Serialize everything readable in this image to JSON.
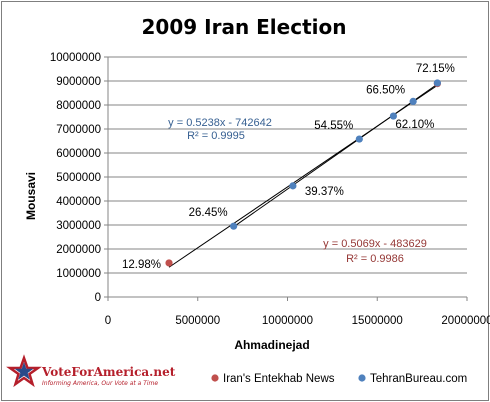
{
  "chart_data": {
    "type": "scatter",
    "title": "2009 Iran Election",
    "xlabel": "Ahmadinejad",
    "ylabel": "Mousavi",
    "xlim": [
      0,
      20000000
    ],
    "ylim": [
      0,
      10000000
    ],
    "xticks": [
      "0",
      "5000000",
      "10000000",
      "15000000",
      "20000000"
    ],
    "yticks": [
      "0",
      "1000000",
      "2000000",
      "3000000",
      "4000000",
      "5000000",
      "6000000",
      "7000000",
      "8000000",
      "9000000",
      "10000000"
    ],
    "grid": "horizontal",
    "series": [
      {
        "name": "Iran's Entekhab News",
        "color": "#c0504d",
        "trendline": {
          "label": "y = 0.5069x - 483629",
          "r2": "R² = 0.9986",
          "slope": 0.5069,
          "intercept": -483629,
          "color": "#953735"
        },
        "points": [
          {
            "x": 3400000,
            "y": 1420000,
            "label": "12.98%"
          },
          {
            "x": 18350000,
            "y": 8890000,
            "label": ""
          }
        ]
      },
      {
        "name": "TehranBureau.com",
        "color": "#4f81bd",
        "trendline": {
          "label": "y = 0.5238x - 742642",
          "r2": "R² = 0.9995",
          "slope": 0.5238,
          "intercept": -742642,
          "color": "#376092"
        },
        "points": [
          {
            "x": 7000000,
            "y": 2950000,
            "label": "26.45%"
          },
          {
            "x": 10300000,
            "y": 4630000,
            "label": "39.37%"
          },
          {
            "x": 14000000,
            "y": 6580000,
            "label": "54.55%"
          },
          {
            "x": 15900000,
            "y": 7540000,
            "label": "62.10%"
          },
          {
            "x": 17000000,
            "y": 8150000,
            "label": "66.50%"
          },
          {
            "x": 18350000,
            "y": 8920000,
            "label": "72.15%"
          }
        ]
      }
    ]
  },
  "logo": {
    "text": "VoteForAmerica.net",
    "tagline": "Informing America, Our Vote at a Time",
    "color": "#b51f2b"
  }
}
